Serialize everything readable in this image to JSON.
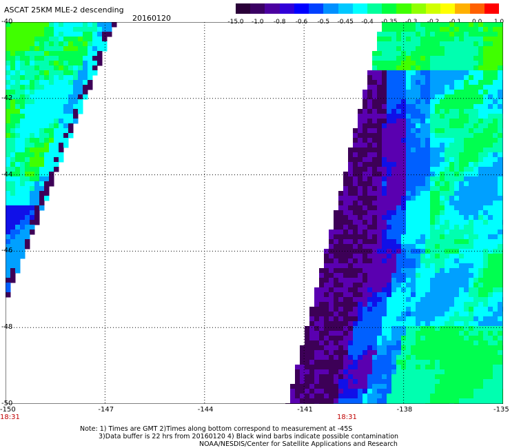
{
  "header": {
    "title": "ASCAT 25KM MLE-2 descending",
    "date": "20160120"
  },
  "colorbar": {
    "ticks": [
      "-15.0",
      "-1.0",
      "-0.8",
      "-0.6",
      "-0.5",
      "-0.45",
      "-0.4",
      "-0.35",
      "-0.3",
      "-0.2",
      "-0.1",
      "0.0",
      "1.0"
    ],
    "colors": [
      "#2a0038",
      "#3a0063",
      "#4b00a0",
      "#3000d8",
      "#0000ff",
      "#0040ff",
      "#0090ff",
      "#00c8ff",
      "#00ffff",
      "#00ff9c",
      "#00ff40",
      "#40ff00",
      "#90ff00",
      "#d0ff00",
      "#ffff00",
      "#ffb000",
      "#ff6000",
      "#ff0000"
    ]
  },
  "axes": {
    "lat_ticks": [
      "-40",
      "-42",
      "-44",
      "-46",
      "-48",
      "-50"
    ],
    "lon_ticks": [
      "-150",
      "-147",
      "-144",
      "-141",
      "-138",
      "-135"
    ],
    "time_labels": [
      "18:31",
      "18:31"
    ]
  },
  "note": {
    "line1": "Note: 1) Times are GMT 2)Times along bottom correspond to measurement at -45S",
    "line2": "3)Data buffer is 22 hrs from 20160120 4) Black wind barbs indicate possible contamination",
    "line3": "NOAA/NESDIS/Center for Satellite Applications and Research"
  }
}
